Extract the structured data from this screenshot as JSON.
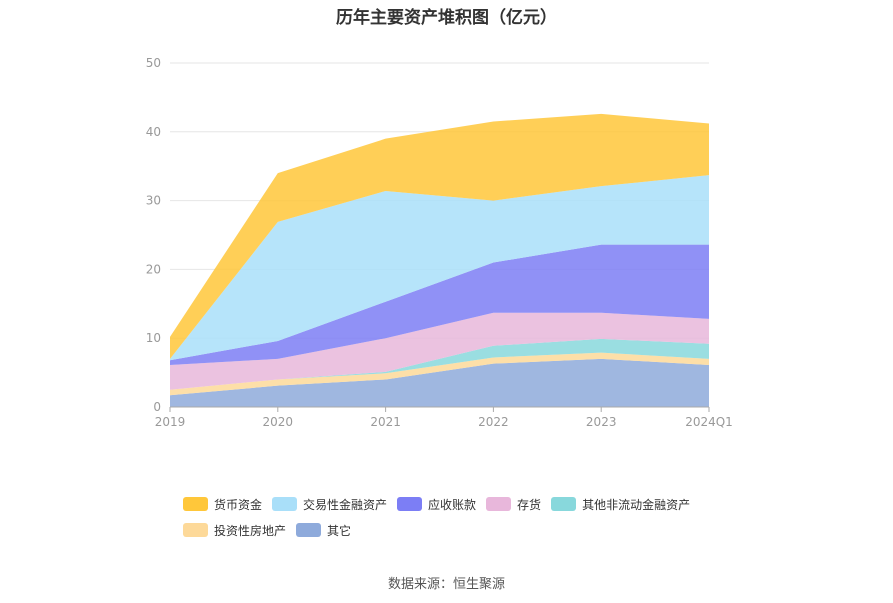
{
  "chart_data": {
    "type": "area",
    "stacked": true,
    "title": "历年主要资产堆积图（亿元）",
    "x": [
      "2019",
      "2020",
      "2021",
      "2022",
      "2023",
      "2024Q1"
    ],
    "yticks": [
      "0",
      "10",
      "20",
      "30",
      "40",
      "50"
    ],
    "ylim": [
      0,
      50
    ],
    "grid": true,
    "legend_position": "bottom",
    "series": [
      {
        "name": "其它",
        "color": "#8eaadb",
        "values": [
          1.7,
          3.1,
          4.0,
          6.3,
          7.0,
          6.1
        ]
      },
      {
        "name": "投资性房地产",
        "color": "#fdd999",
        "values": [
          0.8,
          0.9,
          0.9,
          0.9,
          0.9,
          0.9
        ]
      },
      {
        "name": "其他非流动金融资产",
        "color": "#88d8dc",
        "values": [
          0.0,
          0.0,
          0.2,
          1.7,
          2.0,
          2.2
        ]
      },
      {
        "name": "存货",
        "color": "#e8b7db",
        "values": [
          3.6,
          3.0,
          4.9,
          4.8,
          3.8,
          3.6
        ]
      },
      {
        "name": "应收账款",
        "color": "#7c7ef5",
        "values": [
          0.7,
          2.6,
          5.3,
          7.3,
          9.9,
          10.8
        ]
      },
      {
        "name": "交易性金融资产",
        "color": "#a9dff9",
        "values": [
          0.2,
          17.3,
          16.1,
          9.0,
          8.5,
          10.1
        ]
      },
      {
        "name": "货币资金",
        "color": "#ffc73a",
        "values": [
          3.2,
          7.1,
          7.6,
          11.5,
          10.5,
          7.5
        ]
      }
    ],
    "legend_order": [
      "货币资金",
      "交易性金融资产",
      "应收账款",
      "存货",
      "其他非流动金融资产",
      "投资性房地产",
      "其它"
    ]
  },
  "source": "数据来源：恒生聚源"
}
